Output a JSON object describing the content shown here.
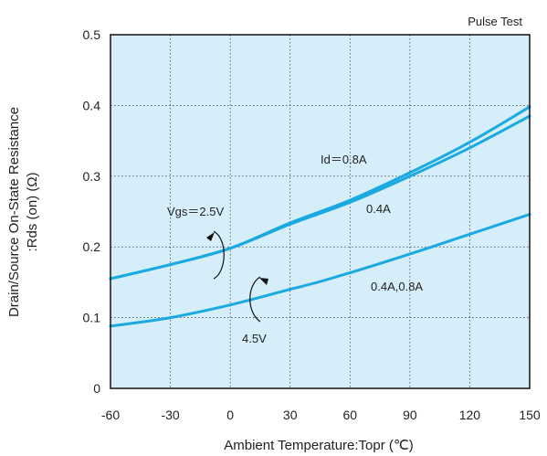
{
  "chart_data": {
    "type": "line",
    "title": "",
    "note": "Pulse Test",
    "xlabel": "Ambient Temperature:Topr (℃)",
    "ylabel_line1": "Drain/Source On-State Resistance",
    "ylabel_line2": ":Rds (on) (Ω)",
    "xlim": [
      -60,
      150
    ],
    "ylim": [
      0,
      0.5
    ],
    "xticks": [
      -60,
      -30,
      0,
      30,
      60,
      90,
      120,
      150
    ],
    "yticks": [
      0,
      0.1,
      0.2,
      0.3,
      0.4,
      0.5
    ],
    "grid": true,
    "colors": {
      "plot_bg": "#d6eefa",
      "grid": "#111111",
      "line": "#1aa9e0",
      "arrow": "#111111"
    },
    "series": [
      {
        "name": "Id=0.8A",
        "x": [
          -60,
          -30,
          0,
          30,
          60,
          90,
          120,
          150
        ],
        "values": [
          0.155,
          0.175,
          0.198,
          0.234,
          0.266,
          0.305,
          0.348,
          0.398
        ]
      },
      {
        "name": "0.4A",
        "x": [
          -60,
          -30,
          0,
          30,
          60,
          90,
          120,
          150
        ],
        "values": [
          0.155,
          0.175,
          0.198,
          0.232,
          0.263,
          0.3,
          0.34,
          0.385
        ]
      },
      {
        "name": "0.4A,0.8A",
        "x": [
          -60,
          -30,
          0,
          30,
          50,
          90,
          120,
          150
        ],
        "values": [
          0.088,
          0.1,
          0.118,
          0.14,
          0.155,
          0.19,
          0.218,
          0.246
        ]
      }
    ],
    "annotations": {
      "id_label": "Id＝0.8A",
      "label_04a": "0.4A",
      "label_0408a": "0.4A,0.8A",
      "vgs_25": "Vgs＝2.5V",
      "vgs_45": "4.5V"
    }
  }
}
